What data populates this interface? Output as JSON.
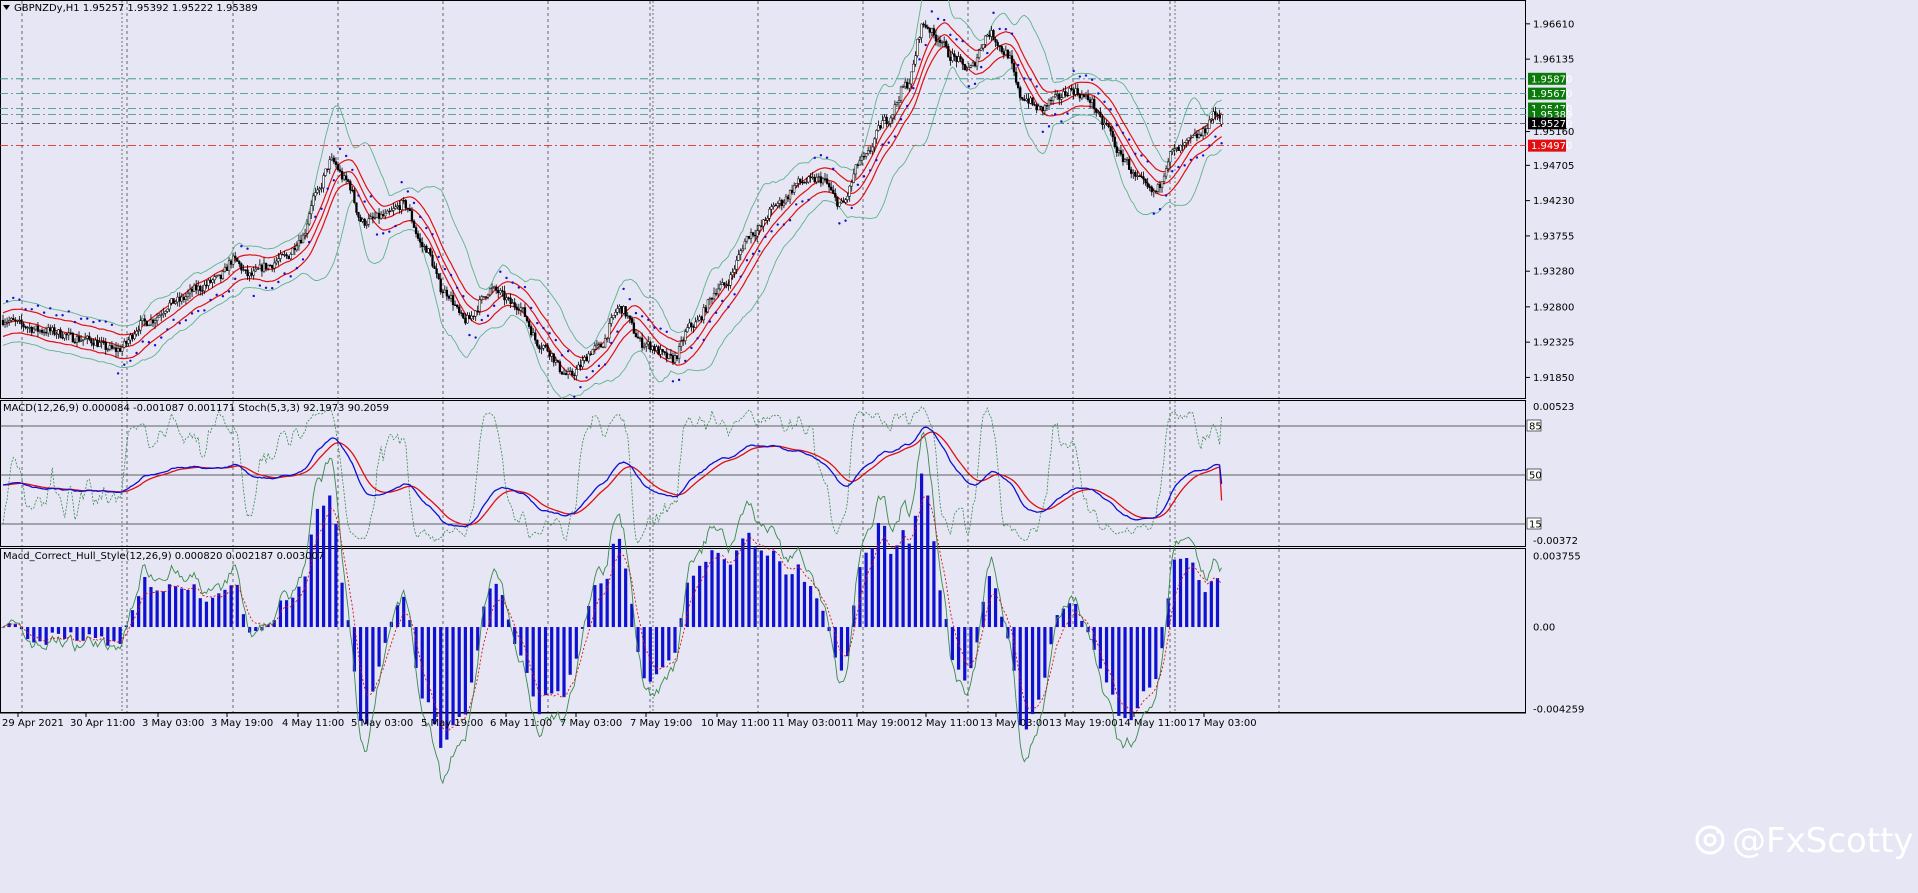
{
  "panels": {
    "price": {
      "header": "GBPNZDy,H1  1.95257 1.95392 1.95222 1.95389",
      "axis_ticks": [
        "1.96610",
        "1.96135",
        "1.95160",
        "1.94705",
        "1.94230",
        "1.93755",
        "1.93280",
        "1.92800",
        "1.92325",
        "1.91850"
      ],
      "levels": [
        {
          "label": "1.95870",
          "value": 1.9587,
          "color": "#0a7a0a",
          "line": "#2e8b8b"
        },
        {
          "label": "1.95670",
          "value": 1.9567,
          "color": "#0a7a0a",
          "line": "#2e8b8b"
        },
        {
          "label": "1.95470",
          "value": 1.9547,
          "color": "#0a7a0a",
          "line": "#2e8b8b"
        },
        {
          "label": "1.95389",
          "value": 1.95389,
          "color": "#0a7a0a",
          "line": "#2e8b8b"
        },
        {
          "label": "1.95270",
          "value": 1.9527,
          "color": "#000000",
          "line": "#2e3b3b"
        },
        {
          "label": "1.94970",
          "value": 1.9497,
          "color": "#e01010",
          "line": "#e01010"
        }
      ]
    },
    "macd": {
      "header": "MACD(12,26,9) 0.000084 -0.001087 0.001171  Stoch(5,3,3) 92.1973 90.2059",
      "axis_ticks": [
        "0.00523",
        "-0.00372"
      ],
      "levels": [
        "85",
        "50",
        "15"
      ]
    },
    "hull": {
      "header": "Macd_Correct_Hull_Style(12,26,9) 0.000820 0.002187 0.003007",
      "axis_ticks": [
        "0.003755",
        "0.00",
        "-0.004259"
      ]
    }
  },
  "x_labels": [
    "29 Apr 2021",
    "30 Apr 11:00",
    "3 May 03:00",
    "3 May 19:00",
    "4 May 11:00",
    "5 May 03:00",
    "5 May 19:00",
    "6 May 11:00",
    "7 May 03:00",
    "7 May 19:00",
    "10 May 11:00",
    "11 May 03:00",
    "11 May 19:00",
    "12 May 11:00",
    "13 May 03:00",
    "13 May 19:00",
    "14 May 11:00",
    "17 May 03:00"
  ],
  "watermark": "@FxScotty",
  "colors": {
    "background": "#e6e6f5",
    "bull": "#ffffff",
    "bear": "#000000",
    "envelope": "#e01010",
    "bollinger": "#5fb38a",
    "psar": "#1010d0",
    "macd_main": "#1010d0",
    "macd_signal": "#e01010",
    "stoch": "#3a8a4a",
    "hist": "#1010d0"
  },
  "chart_data": [
    {
      "type": "line",
      "title": "GBPNZDy,H1",
      "ylim": [
        1.916,
        1.9685
      ],
      "anchors": [
        [
          0,
          1.9262
        ],
        [
          20,
          1.9248
        ],
        [
          40,
          1.9236
        ],
        [
          55,
          1.9222
        ],
        [
          70,
          1.926
        ],
        [
          85,
          1.9288
        ],
        [
          95,
          1.9305
        ],
        [
          105,
          1.9318
        ],
        [
          112,
          1.9343
        ],
        [
          120,
          1.9322
        ],
        [
          128,
          1.9335
        ],
        [
          138,
          1.9348
        ],
        [
          145,
          1.9372
        ],
        [
          152,
          1.943
        ],
        [
          160,
          1.9476
        ],
        [
          167,
          1.945
        ],
        [
          175,
          1.9394
        ],
        [
          185,
          1.9402
        ],
        [
          195,
          1.9418
        ],
        [
          205,
          1.936
        ],
        [
          215,
          1.93
        ],
        [
          225,
          1.9262
        ],
        [
          238,
          1.9303
        ],
        [
          250,
          1.9282
        ],
        [
          262,
          1.9228
        ],
        [
          275,
          1.9188
        ],
        [
          290,
          1.9226
        ],
        [
          300,
          1.9278
        ],
        [
          312,
          1.923
        ],
        [
          326,
          1.921
        ],
        [
          335,
          1.9255
        ],
        [
          350,
          1.9308
        ],
        [
          365,
          1.938
        ],
        [
          378,
          1.942
        ],
        [
          388,
          1.9448
        ],
        [
          398,
          1.9452
        ],
        [
          408,
          1.9418
        ],
        [
          418,
          1.9478
        ],
        [
          430,
          1.9532
        ],
        [
          440,
          1.958
        ],
        [
          448,
          1.966
        ],
        [
          455,
          1.9642
        ],
        [
          462,
          1.9616
        ],
        [
          470,
          1.96
        ],
        [
          480,
          1.9648
        ],
        [
          488,
          1.9622
        ],
        [
          496,
          1.9562
        ],
        [
          505,
          1.9546
        ],
        [
          512,
          1.956
        ],
        [
          520,
          1.9572
        ],
        [
          528,
          1.956
        ],
        [
          536,
          1.9526
        ],
        [
          545,
          1.948
        ],
        [
          552,
          1.9452
        ],
        [
          560,
          1.9434
        ],
        [
          570,
          1.949
        ],
        [
          582,
          1.951
        ],
        [
          590,
          1.9539
        ]
      ],
      "last": {
        "open": 1.95257,
        "high": 1.95392,
        "low": 1.95222,
        "close": 1.95389
      },
      "series": [
        {
          "values_ref": "candles"
        },
        {
          "values_ref": "envelope-upper"
        },
        {
          "values_ref": "envelope-mid"
        },
        {
          "values_ref": "envelope-lower"
        },
        {
          "values_ref": "bollinger-upper"
        },
        {
          "values_ref": "bollinger-lower"
        },
        {
          "values_ref": "parabolic-sar"
        }
      ]
    },
    {
      "type": "line",
      "title": "MACD(12,26,9)",
      "ylim": [
        -0.0042,
        0.0056
      ],
      "values": {
        "macd": 8.4e-05,
        "signal": -0.001087,
        "histogram": 0.001171,
        "stoch_k": 92.1973,
        "stoch_d": 90.2059
      },
      "series": [
        {
          "values_ref": "macd-main"
        },
        {
          "values_ref": "macd-signal"
        },
        {
          "values_ref": "stochastic"
        }
      ]
    },
    {
      "type": "bar",
      "title": "Macd_Correct_Hull_Style(12,26,9)",
      "ylim": [
        -0.004259,
        0.003755
      ],
      "values": {
        "hist": 0.00082,
        "line1": 0.002187,
        "line2": 0.003007
      },
      "series": [
        {
          "values_ref": "hull-histogram"
        },
        {
          "values_ref": "hull-green"
        },
        {
          "values_ref": "hull-red"
        }
      ]
    }
  ]
}
